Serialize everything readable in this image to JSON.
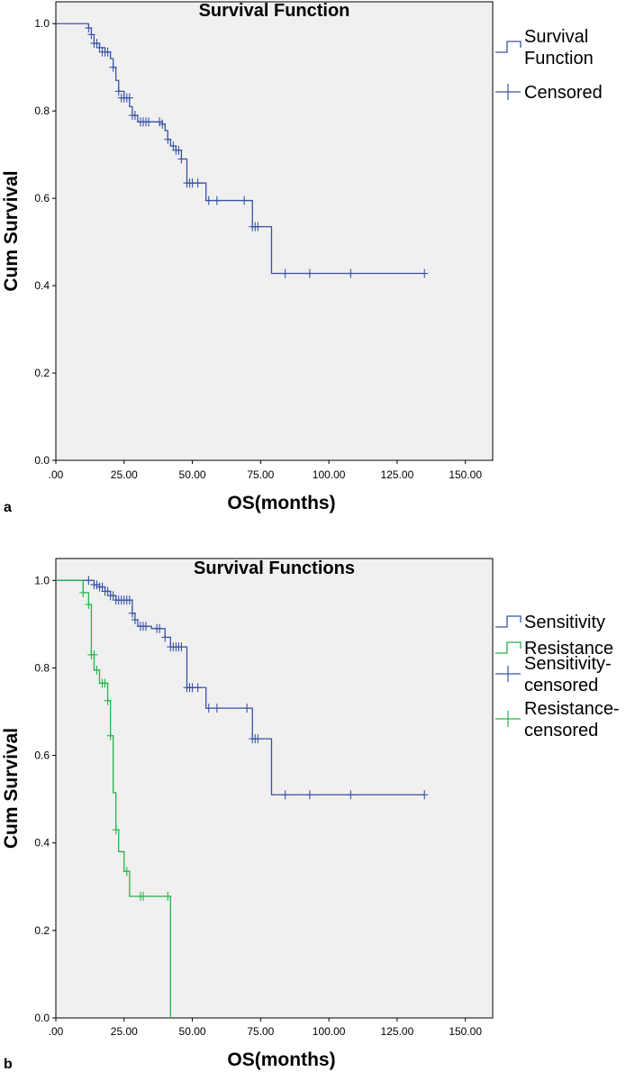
{
  "chart_data": [
    {
      "type": "line",
      "panel_label": "a",
      "title": "Survival Function",
      "xlabel": "OS(months)",
      "ylabel": "Cum Survival",
      "xlim": [
        0,
        160
      ],
      "ylim": [
        0,
        1.05
      ],
      "xticks": [
        0,
        25,
        50,
        75,
        100,
        125,
        150
      ],
      "xtick_labels": [
        ".00",
        "25.00",
        "50.00",
        "75.00",
        "100.00",
        "125.00",
        "150.00"
      ],
      "yticks": [
        0,
        0.2,
        0.4,
        0.6,
        0.8,
        1.0
      ],
      "ytick_labels": [
        "0.0",
        "0.2",
        "0.4",
        "0.6",
        "0.8",
        "1.0"
      ],
      "legend": [
        {
          "label": [
            "Survival",
            "Function"
          ],
          "kind": "step",
          "color": "#3953a4"
        },
        {
          "label": [
            "Censored"
          ],
          "kind": "plus",
          "color": "#3953a4"
        }
      ],
      "series": [
        {
          "name": "Survival Function",
          "color": "#3953a4",
          "steps": [
            [
              0,
              1.0
            ],
            [
              12,
              0.99
            ],
            [
              13,
              0.975
            ],
            [
              14,
              0.955
            ],
            [
              16,
              0.945
            ],
            [
              18,
              0.935
            ],
            [
              20,
              0.92
            ],
            [
              21,
              0.9
            ],
            [
              22,
              0.87
            ],
            [
              23,
              0.845
            ],
            [
              25,
              0.83
            ],
            [
              27,
              0.81
            ],
            [
              28,
              0.79
            ],
            [
              30,
              0.775
            ],
            [
              39,
              0.77
            ],
            [
              40,
              0.755
            ],
            [
              41,
              0.735
            ],
            [
              42,
              0.72
            ],
            [
              44,
              0.71
            ],
            [
              46,
              0.69
            ],
            [
              48,
              0.635
            ],
            [
              55,
              0.595
            ],
            [
              72,
              0.535
            ],
            [
              79,
              0.428
            ]
          ],
          "end_x": 135,
          "censored": [
            [
              12,
              0.99
            ],
            [
              13,
              0.975
            ],
            [
              14,
              0.955
            ],
            [
              15,
              0.955
            ],
            [
              16,
              0.945
            ],
            [
              17,
              0.935
            ],
            [
              18,
              0.935
            ],
            [
              19,
              0.935
            ],
            [
              21,
              0.9
            ],
            [
              23,
              0.845
            ],
            [
              24,
              0.83
            ],
            [
              25,
              0.83
            ],
            [
              26,
              0.83
            ],
            [
              27,
              0.83
            ],
            [
              28,
              0.79
            ],
            [
              29,
              0.79
            ],
            [
              31,
              0.775
            ],
            [
              32,
              0.775
            ],
            [
              33,
              0.775
            ],
            [
              34,
              0.775
            ],
            [
              38,
              0.775
            ],
            [
              39,
              0.77
            ],
            [
              41,
              0.735
            ],
            [
              43,
              0.72
            ],
            [
              44,
              0.71
            ],
            [
              45,
              0.71
            ],
            [
              46,
              0.69
            ],
            [
              48,
              0.635
            ],
            [
              49,
              0.635
            ],
            [
              50,
              0.635
            ],
            [
              52,
              0.635
            ],
            [
              56,
              0.595
            ],
            [
              59,
              0.595
            ],
            [
              69,
              0.595
            ],
            [
              72,
              0.535
            ],
            [
              73,
              0.535
            ],
            [
              74,
              0.535
            ],
            [
              84,
              0.428
            ],
            [
              93,
              0.428
            ],
            [
              108,
              0.428
            ],
            [
              135,
              0.428
            ]
          ]
        }
      ]
    },
    {
      "type": "line",
      "panel_label": "b",
      "title": "Survival Functions",
      "xlabel": "OS(months)",
      "ylabel": "Cum Survival",
      "xlim": [
        0,
        160
      ],
      "ylim": [
        0,
        1.05
      ],
      "xticks": [
        0,
        25,
        50,
        75,
        100,
        125,
        150
      ],
      "xtick_labels": [
        ".00",
        "25.00",
        "50.00",
        "75.00",
        "100.00",
        "125.00",
        "150.00"
      ],
      "yticks": [
        0,
        0.2,
        0.4,
        0.6,
        0.8,
        1.0
      ],
      "ytick_labels": [
        "0.0",
        "0.2",
        "0.4",
        "0.6",
        "0.8",
        "1.0"
      ],
      "legend": [
        {
          "label": [
            "Sensitivity"
          ],
          "kind": "step",
          "color": "#3953a4"
        },
        {
          "label": [
            "Resistance"
          ],
          "kind": "step",
          "color": "#26b34a"
        },
        {
          "label": [
            "Sensitivity-",
            "censored"
          ],
          "kind": "plus",
          "color": "#3953a4"
        },
        {
          "label": [
            "Resistance-",
            "censored"
          ],
          "kind": "plus",
          "color": "#26b34a"
        }
      ],
      "series": [
        {
          "name": "Sensitivity",
          "color": "#3953a4",
          "steps": [
            [
              0,
              1.0
            ],
            [
              14,
              0.99
            ],
            [
              16,
              0.985
            ],
            [
              18,
              0.975
            ],
            [
              20,
              0.965
            ],
            [
              22,
              0.955
            ],
            [
              28,
              0.925
            ],
            [
              29,
              0.91
            ],
            [
              30,
              0.895
            ],
            [
              35,
              0.89
            ],
            [
              40,
              0.87
            ],
            [
              42,
              0.848
            ],
            [
              48,
              0.755
            ],
            [
              55,
              0.708
            ],
            [
              72,
              0.638
            ],
            [
              79,
              0.51
            ]
          ],
          "end_x": 135,
          "censored": [
            [
              12,
              1.0
            ],
            [
              14,
              0.99
            ],
            [
              15,
              0.99
            ],
            [
              16,
              0.985
            ],
            [
              17,
              0.985
            ],
            [
              18,
              0.975
            ],
            [
              19,
              0.975
            ],
            [
              20,
              0.965
            ],
            [
              21,
              0.965
            ],
            [
              22,
              0.955
            ],
            [
              23,
              0.955
            ],
            [
              24,
              0.955
            ],
            [
              25,
              0.955
            ],
            [
              26,
              0.955
            ],
            [
              27,
              0.955
            ],
            [
              28,
              0.925
            ],
            [
              29,
              0.91
            ],
            [
              31,
              0.895
            ],
            [
              32,
              0.895
            ],
            [
              33,
              0.895
            ],
            [
              37,
              0.89
            ],
            [
              38,
              0.89
            ],
            [
              40,
              0.87
            ],
            [
              42,
              0.848
            ],
            [
              43,
              0.848
            ],
            [
              44,
              0.848
            ],
            [
              45,
              0.848
            ],
            [
              46,
              0.848
            ],
            [
              48,
              0.755
            ],
            [
              49,
              0.755
            ],
            [
              50,
              0.755
            ],
            [
              52,
              0.755
            ],
            [
              56,
              0.708
            ],
            [
              59,
              0.708
            ],
            [
              70,
              0.708
            ],
            [
              72,
              0.638
            ],
            [
              73,
              0.638
            ],
            [
              74,
              0.638
            ],
            [
              84,
              0.51
            ],
            [
              93,
              0.51
            ],
            [
              108,
              0.51
            ],
            [
              135,
              0.51
            ]
          ]
        },
        {
          "name": "Resistance",
          "color": "#26b34a",
          "steps": [
            [
              0,
              1.0
            ],
            [
              10,
              0.972
            ],
            [
              12,
              0.945
            ],
            [
              13,
              0.83
            ],
            [
              14,
              0.795
            ],
            [
              16,
              0.765
            ],
            [
              19,
              0.725
            ],
            [
              20,
              0.645
            ],
            [
              21,
              0.515
            ],
            [
              22,
              0.43
            ],
            [
              23,
              0.38
            ],
            [
              25,
              0.335
            ],
            [
              27,
              0.278
            ],
            [
              42,
              0.0
            ]
          ],
          "end_x": 42,
          "censored": [
            [
              10,
              0.972
            ],
            [
              12,
              0.945
            ],
            [
              13,
              0.83
            ],
            [
              14,
              0.83
            ],
            [
              15,
              0.795
            ],
            [
              17,
              0.765
            ],
            [
              18,
              0.765
            ],
            [
              19,
              0.725
            ],
            [
              20,
              0.645
            ],
            [
              22,
              0.43
            ],
            [
              26,
              0.335
            ],
            [
              31,
              0.278
            ],
            [
              32,
              0.278
            ],
            [
              41,
              0.278
            ]
          ]
        }
      ]
    }
  ]
}
